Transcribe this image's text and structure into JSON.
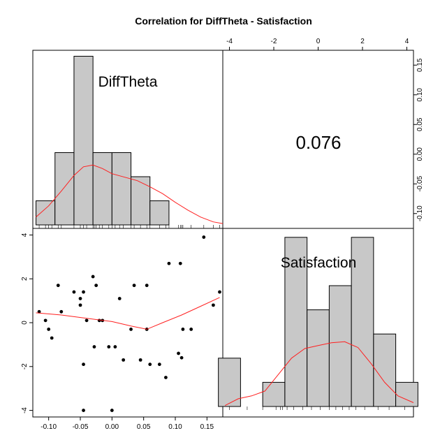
{
  "chart_data": {
    "type": "pairs",
    "title": "Correlation  for DiffTheta - Satisfaction",
    "variables": [
      "DiffTheta",
      "Satisfaction"
    ],
    "correlation": "0.076",
    "difftheta": {
      "axis_ticks": [
        -0.1,
        -0.05,
        0.0,
        0.05,
        0.1,
        0.15
      ],
      "axis_tick_labels": [
        "-0.10",
        "-0.05",
        "0.00",
        "0.05",
        "0.10",
        "0.15"
      ],
      "range": [
        -0.125,
        0.175
      ],
      "histogram": {
        "breaks": [
          -0.12,
          -0.09,
          -0.06,
          -0.03,
          0.0,
          0.03,
          0.06,
          0.09,
          0.12,
          0.15,
          0.18
        ],
        "counts": [
          1,
          3,
          7,
          3,
          3,
          2,
          1,
          0,
          0,
          0
        ],
        "display_bins": [
          {
            "x0": -0.12,
            "x1": -0.09,
            "count": 1
          },
          {
            "x0": -0.09,
            "x1": -0.06,
            "count": 3
          },
          {
            "x0": -0.06,
            "x1": -0.03,
            "count": 7
          },
          {
            "x0": -0.03,
            "x1": 0.0,
            "count": 3
          },
          {
            "x0": 0.0,
            "x1": 0.03,
            "count": 3
          },
          {
            "x0": 0.03,
            "x1": 0.06,
            "count": 2
          },
          {
            "x0": 0.06,
            "x1": 0.09,
            "count": 1
          }
        ]
      }
    },
    "satisfaction": {
      "axis_ticks": [
        -4,
        -2,
        0,
        2,
        4
      ],
      "axis_tick_labels": [
        "-4",
        "-2",
        "0",
        "2",
        "4"
      ],
      "range": [
        -4.3,
        4.3
      ],
      "histogram": {
        "display_bins": [
          {
            "x0": -4.5,
            "x1": -3.5,
            "count": 2
          },
          {
            "x0": -3.5,
            "x1": -2.5,
            "count": 0
          },
          {
            "x0": -2.5,
            "x1": -1.5,
            "count": 1
          },
          {
            "x0": -1.5,
            "x1": -0.5,
            "count": 7
          },
          {
            "x0": -0.5,
            "x1": 0.5,
            "count": 4
          },
          {
            "x0": 0.5,
            "x1": 1.5,
            "count": 5
          },
          {
            "x0": 1.5,
            "x1": 2.5,
            "count": 7
          },
          {
            "x0": 2.5,
            "x1": 3.5,
            "count": 3
          },
          {
            "x0": 3.5,
            "x1": 4.5,
            "count": 1
          }
        ]
      }
    },
    "upper_right_axis_ticks": [
      -0.1,
      -0.05,
      0.0,
      0.05,
      0.1,
      0.15
    ],
    "upper_right_axis_tick_labels": [
      "-0.10",
      "-0.05",
      "0.00",
      "0.05",
      "0.10",
      "0.15"
    ],
    "scatter_points": [
      {
        "x": -0.115,
        "y": 0.5
      },
      {
        "x": -0.105,
        "y": 0.1
      },
      {
        "x": -0.1,
        "y": -0.3
      },
      {
        "x": -0.095,
        "y": -0.7
      },
      {
        "x": -0.085,
        "y": 1.7
      },
      {
        "x": -0.08,
        "y": 0.5
      },
      {
        "x": -0.06,
        "y": 1.4
      },
      {
        "x": -0.05,
        "y": 1.1
      },
      {
        "x": -0.05,
        "y": 0.8
      },
      {
        "x": -0.045,
        "y": 1.4
      },
      {
        "x": -0.045,
        "y": -1.9
      },
      {
        "x": -0.045,
        "y": -4.0
      },
      {
        "x": -0.04,
        "y": 0.1
      },
      {
        "x": -0.03,
        "y": 2.1
      },
      {
        "x": -0.028,
        "y": -1.1
      },
      {
        "x": -0.025,
        "y": 1.7
      },
      {
        "x": -0.02,
        "y": 0.1
      },
      {
        "x": -0.015,
        "y": 0.1
      },
      {
        "x": -0.005,
        "y": -1.1
      },
      {
        "x": 0.0,
        "y": -4.0
      },
      {
        "x": 0.005,
        "y": -1.1
      },
      {
        "x": 0.012,
        "y": 1.1
      },
      {
        "x": 0.018,
        "y": -1.7
      },
      {
        "x": 0.03,
        "y": -0.3
      },
      {
        "x": 0.035,
        "y": 1.7
      },
      {
        "x": 0.045,
        "y": -1.7
      },
      {
        "x": 0.055,
        "y": 1.7
      },
      {
        "x": 0.055,
        "y": -0.3
      },
      {
        "x": 0.06,
        "y": -1.9
      },
      {
        "x": 0.075,
        "y": -1.9
      },
      {
        "x": 0.085,
        "y": -2.5
      },
      {
        "x": 0.09,
        "y": 2.7
      },
      {
        "x": 0.105,
        "y": -1.4
      },
      {
        "x": 0.108,
        "y": 2.7
      },
      {
        "x": 0.11,
        "y": -1.6
      },
      {
        "x": 0.112,
        "y": -0.3
      },
      {
        "x": 0.125,
        "y": -0.3
      },
      {
        "x": 0.145,
        "y": 3.9
      },
      {
        "x": 0.16,
        "y": 0.8
      },
      {
        "x": 0.17,
        "y": 1.4
      }
    ],
    "smooth_line": [
      {
        "x": -0.12,
        "y": 0.45
      },
      {
        "x": -0.08,
        "y": 0.35
      },
      {
        "x": -0.04,
        "y": 0.2
      },
      {
        "x": 0.0,
        "y": 0.05
      },
      {
        "x": 0.03,
        "y": -0.15
      },
      {
        "x": 0.055,
        "y": -0.3
      },
      {
        "x": 0.08,
        "y": 0.0
      },
      {
        "x": 0.11,
        "y": 0.35
      },
      {
        "x": 0.14,
        "y": 0.75
      },
      {
        "x": 0.17,
        "y": 1.15
      }
    ],
    "density_difftheta": [
      {
        "x": -0.12,
        "y": 0.9
      },
      {
        "x": -0.1,
        "y": 2.2
      },
      {
        "x": -0.08,
        "y": 3.9
      },
      {
        "x": -0.06,
        "y": 5.7
      },
      {
        "x": -0.045,
        "y": 6.7
      },
      {
        "x": -0.03,
        "y": 6.9
      },
      {
        "x": -0.015,
        "y": 6.5
      },
      {
        "x": 0.0,
        "y": 5.9
      },
      {
        "x": 0.02,
        "y": 5.5
      },
      {
        "x": 0.04,
        "y": 5.1
      },
      {
        "x": 0.06,
        "y": 4.4
      },
      {
        "x": 0.08,
        "y": 3.6
      },
      {
        "x": 0.1,
        "y": 2.6
      },
      {
        "x": 0.12,
        "y": 1.7
      },
      {
        "x": 0.14,
        "y": 0.9
      },
      {
        "x": 0.16,
        "y": 0.35
      },
      {
        "x": 0.175,
        "y": 0.15
      }
    ],
    "density_satisfaction": [
      {
        "x": -4.2,
        "y": 0.1
      },
      {
        "x": -3.6,
        "y": 0.8
      },
      {
        "x": -3.0,
        "y": 1.1
      },
      {
        "x": -2.4,
        "y": 1.6
      },
      {
        "x": -1.8,
        "y": 3.3
      },
      {
        "x": -1.2,
        "y": 5.0
      },
      {
        "x": -0.6,
        "y": 6.0
      },
      {
        "x": 0.0,
        "y": 6.3
      },
      {
        "x": 0.6,
        "y": 6.6
      },
      {
        "x": 1.2,
        "y": 6.7
      },
      {
        "x": 1.8,
        "y": 6.1
      },
      {
        "x": 2.4,
        "y": 4.4
      },
      {
        "x": 3.0,
        "y": 2.5
      },
      {
        "x": 3.6,
        "y": 1.1
      },
      {
        "x": 4.3,
        "y": 0.4
      }
    ],
    "rug_difftheta": [
      -0.115,
      -0.105,
      -0.1,
      -0.095,
      -0.085,
      -0.08,
      -0.06,
      -0.05,
      -0.045,
      -0.04,
      -0.03,
      -0.028,
      -0.025,
      -0.02,
      -0.015,
      -0.005,
      0.0,
      0.005,
      0.012,
      0.018,
      0.03,
      0.035,
      0.045,
      0.055,
      0.06,
      0.075,
      0.085,
      0.09,
      0.105,
      0.108,
      0.11,
      0.112,
      0.125,
      0.145,
      0.16,
      0.17
    ],
    "rug_satisfaction": [
      -4.0,
      -3.2,
      -2.5,
      -1.9,
      -1.7,
      -1.6,
      -1.4,
      -1.1,
      -0.7,
      -0.3,
      0.1,
      0.5,
      0.8,
      1.1,
      1.4,
      1.7,
      2.1,
      2.7,
      3.2,
      3.9
    ],
    "colors": {
      "bar_fill": "#c8c8c8",
      "density": "#ff2020",
      "smooth": "#ff2020",
      "points": "#000000"
    }
  }
}
